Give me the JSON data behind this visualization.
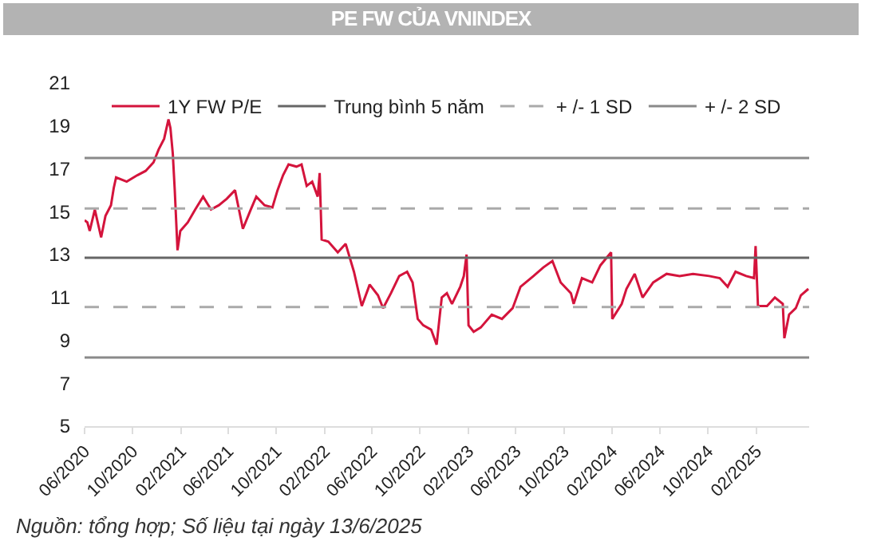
{
  "chart_data": {
    "type": "line",
    "title": "PE FW CỦA VNINDEX",
    "annotations": [
      "Nguồn: tổng hợp; Số liệu tại ngày 13/6/2025"
    ],
    "x": [
      "2020-06-01",
      "2020-06-08",
      "2020-06-14",
      "2020-06-27",
      "2020-07-13",
      "2020-07-24",
      "2020-08-07",
      "2020-08-14",
      "2020-08-20",
      "2020-09-16",
      "2020-10-13",
      "2020-11-03",
      "2020-11-23",
      "2020-12-06",
      "2020-12-20",
      "2020-12-31",
      "2021-01-05",
      "2021-01-11",
      "2021-01-16",
      "2021-01-23",
      "2021-01-30",
      "2021-02-18",
      "2021-03-09",
      "2021-03-29",
      "2021-04-18",
      "2021-05-08",
      "2021-05-28",
      "2021-06-18",
      "2021-07-08",
      "2021-07-28",
      "2021-08-11",
      "2021-09-01",
      "2021-09-21",
      "2021-10-04",
      "2021-10-18",
      "2021-11-01",
      "2021-11-21",
      "2021-12-04",
      "2021-12-17",
      "2021-12-31",
      "2022-01-14",
      "2022-01-19",
      "2022-01-24",
      "2022-02-10",
      "2022-03-06",
      "2022-03-26",
      "2022-04-16",
      "2022-05-06",
      "2022-05-26",
      "2022-06-16",
      "2022-06-29",
      "2022-07-19",
      "2022-08-09",
      "2022-08-29",
      "2022-09-12",
      "2022-09-25",
      "2022-10-09",
      "2022-10-29",
      "2022-11-12",
      "2022-11-25",
      "2022-12-08",
      "2022-12-21",
      "2023-01-11",
      "2023-01-20",
      "2023-01-27",
      "2023-02-01",
      "2023-02-14",
      "2023-03-04",
      "2023-04-01",
      "2023-04-27",
      "2023-05-24",
      "2023-06-13",
      "2023-07-16",
      "2023-08-10",
      "2023-09-02",
      "2023-09-23",
      "2023-10-19",
      "2023-10-26",
      "2023-11-16",
      "2023-12-12",
      "2024-01-02",
      "2024-01-29",
      "2024-02-01",
      "2024-02-25",
      "2024-03-08",
      "2024-03-29",
      "2024-04-18",
      "2024-05-15",
      "2024-06-18",
      "2024-07-21",
      "2024-08-24",
      "2024-10-04",
      "2024-10-31",
      "2024-11-20",
      "2024-12-10",
      "2025-01-06",
      "2025-01-26",
      "2025-01-30",
      "2025-02-05",
      "2025-02-28",
      "2025-03-20",
      "2025-04-09",
      "2025-04-13",
      "2025-04-25",
      "2025-05-12",
      "2025-05-25",
      "2025-06-13"
    ],
    "series": [
      {
        "name": "1Y FW P/E",
        "color": "#d4143c",
        "values": [
          14.6,
          14.5,
          14.1,
          15.1,
          13.8,
          14.8,
          15.3,
          16.1,
          16.6,
          16.4,
          16.7,
          16.9,
          17.3,
          17.9,
          18.4,
          19.3,
          18.9,
          17.7,
          16.0,
          13.2,
          14.1,
          14.5,
          15.1,
          15.7,
          15.1,
          15.3,
          15.6,
          16.0,
          14.2,
          15.1,
          15.7,
          15.3,
          15.2,
          16.0,
          16.7,
          17.2,
          17.1,
          17.2,
          16.2,
          16.4,
          15.7,
          16.8,
          13.7,
          13.6,
          13.1,
          13.5,
          12.2,
          10.6,
          11.6,
          11.1,
          10.5,
          11.2,
          12.0,
          12.2,
          11.7,
          10.0,
          9.7,
          9.5,
          8.8,
          11.0,
          11.2,
          10.7,
          11.5,
          12.0,
          13.0,
          9.7,
          9.4,
          9.6,
          10.2,
          10.0,
          10.5,
          11.5,
          12.0,
          12.4,
          12.7,
          11.7,
          11.2,
          10.7,
          11.9,
          11.7,
          12.5,
          13.1,
          10.0,
          10.7,
          11.4,
          12.1,
          11.0,
          11.7,
          12.1,
          12.0,
          12.1,
          12.0,
          11.9,
          11.5,
          12.2,
          12.0,
          11.9,
          13.4,
          10.6,
          10.6,
          11.0,
          10.7,
          9.1,
          10.2,
          10.5,
          11.1,
          11.4
        ]
      }
    ],
    "ref_lines": [
      {
        "axis": "y",
        "value": 12.85,
        "label": "Trung bình 5 năm",
        "color": "#666666",
        "line_style": "solid"
      },
      {
        "axis": "y",
        "value": 15.15,
        "label": "+ /- 1 SD",
        "color": "#aaaaaa",
        "line_style": "dashed"
      },
      {
        "axis": "y",
        "value": 10.55,
        "color": "#aaaaaa",
        "line_style": "dashed"
      },
      {
        "axis": "y",
        "value": 17.5,
        "label": "+ /- 2 SD",
        "color": "#8a8a8a",
        "line_style": "solid"
      },
      {
        "axis": "y",
        "value": 8.2,
        "color": "#8a8a8a",
        "line_style": "solid"
      }
    ],
    "xlim": [
      "2020-06-01",
      "2025-06-15"
    ],
    "xticks": [
      {
        "value": "2020-06-01",
        "label": "06/2020"
      },
      {
        "value": "2020-10-01",
        "label": "10/2020"
      },
      {
        "value": "2021-02-01",
        "label": "02/2021"
      },
      {
        "value": "2021-06-01",
        "label": "06/2021"
      },
      {
        "value": "2021-10-01",
        "label": "10/2021"
      },
      {
        "value": "2022-02-01",
        "label": "02/2022"
      },
      {
        "value": "2022-06-01",
        "label": "06/2022"
      },
      {
        "value": "2022-10-01",
        "label": "10/2022"
      },
      {
        "value": "2023-02-01",
        "label": "02/2023"
      },
      {
        "value": "2023-06-01",
        "label": "06/2023"
      },
      {
        "value": "2023-10-01",
        "label": "10/2023"
      },
      {
        "value": "2024-02-01",
        "label": "02/2024"
      },
      {
        "value": "2024-06-01",
        "label": "06/2024"
      },
      {
        "value": "2024-10-01",
        "label": "10/2024"
      },
      {
        "value": "2025-02-01",
        "label": "02/2025"
      }
    ],
    "ylim": [
      5,
      21
    ],
    "yticks": [
      5,
      7,
      9,
      11,
      13,
      15,
      17,
      19,
      21
    ],
    "grid": false,
    "legend": "top",
    "marker": "none",
    "line_style": "solid"
  }
}
